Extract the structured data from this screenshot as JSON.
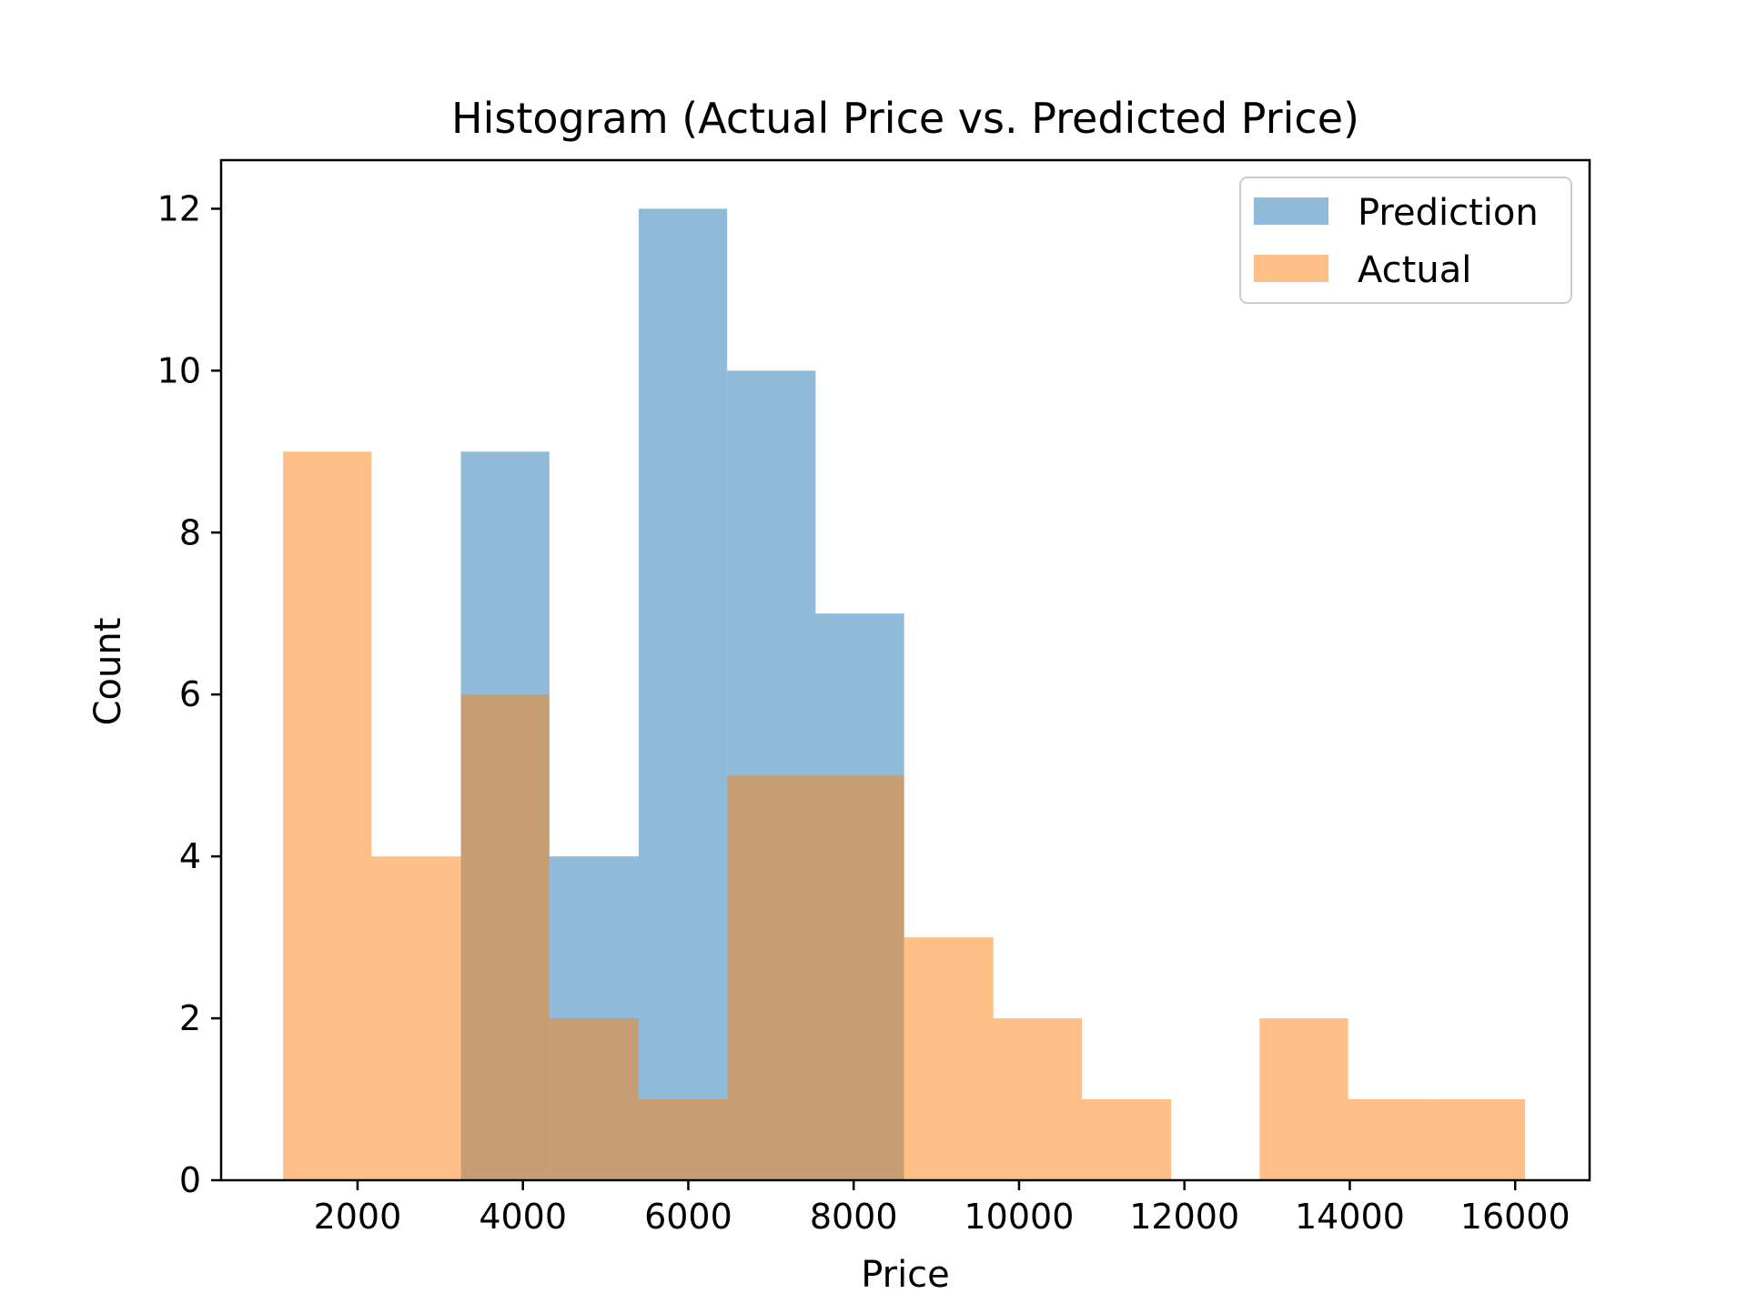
{
  "chart_data": {
    "type": "bar",
    "title": "Histogram (Actual Price vs. Predicted Price)",
    "xlabel": "Price",
    "ylabel": "Count",
    "xlim": [
      350,
      16900
    ],
    "ylim": [
      0,
      12.6
    ],
    "xticks": [
      2000,
      4000,
      6000,
      8000,
      10000,
      12000,
      14000,
      16000
    ],
    "yticks": [
      0,
      2,
      4,
      6,
      8,
      10,
      12
    ],
    "grid": false,
    "legend_position": "top-right",
    "series": [
      {
        "name": "Prediction",
        "color": "#1f77b4",
        "opacity": 0.5,
        "bin_edges": [
          3250,
          4320,
          5400,
          6470,
          7540,
          8610
        ],
        "values": [
          9,
          4,
          12,
          10,
          7
        ]
      },
      {
        "name": "Actual",
        "color": "#ff7f0e",
        "opacity": 0.5,
        "bin_edges": [
          1100,
          2170,
          3250,
          4320,
          5400,
          6470,
          7540,
          8610,
          9690,
          10760,
          11840,
          12910,
          13980,
          15050,
          16120
        ],
        "values": [
          9,
          4,
          6,
          2,
          1,
          5,
          5,
          3,
          2,
          1,
          0,
          2,
          1,
          1
        ]
      }
    ]
  }
}
